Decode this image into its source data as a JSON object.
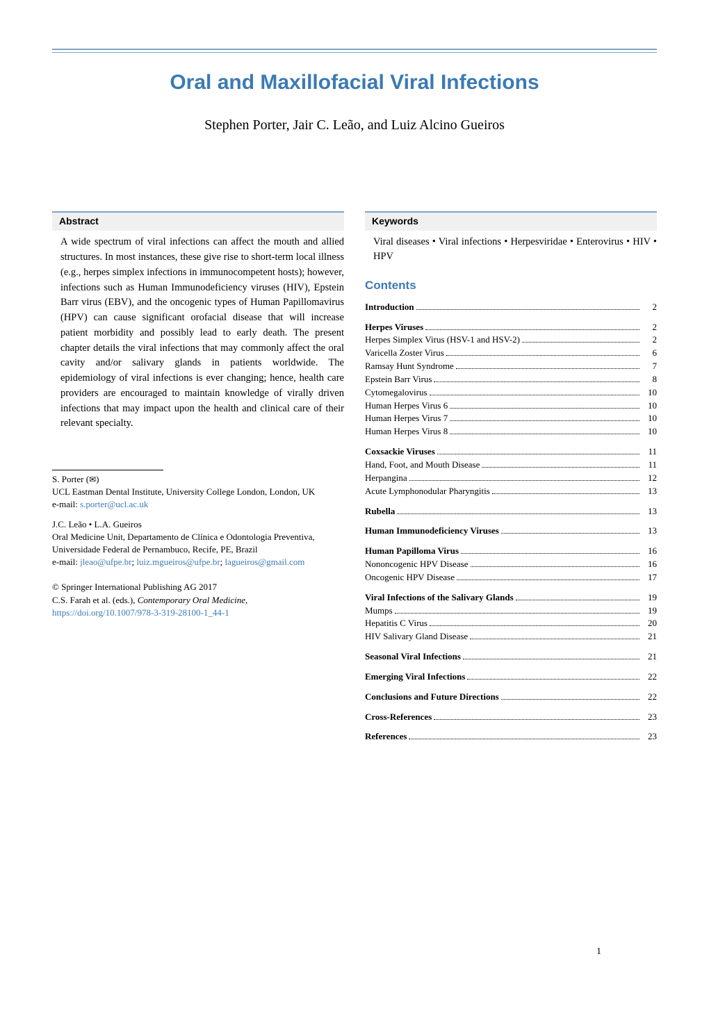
{
  "title": "Oral and Maxillofacial Viral Infections",
  "authors_line": "Stephen Porter, Jair C. Leão, and Luiz Alcino Gueiros",
  "abstract": {
    "heading": "Abstract",
    "body": "A wide spectrum of viral infections can affect the mouth and allied structures. In most instances, these give rise to short-term local illness (e.g., herpes simplex infections in immunocompetent hosts); however, infections such as Human Immunodeficiency viruses (HIV), Epstein Barr virus (EBV), and the oncogenic types of Human Papillomavirus (HPV) can cause significant orofacial disease that will increase patient morbidity and possibly lead to early death. The present chapter details the viral infections that may commonly affect the oral cavity and/or salivary glands in patients worldwide. The epidemiology of viral infections is ever changing; hence, health care providers are encouraged to maintain knowledge of virally driven infections that may impact upon the health and clinical care of their relevant specialty."
  },
  "keywords": {
    "heading": "Keywords",
    "body": "Viral diseases • Viral infections • Herpesviridae • Enterovirus • HIV • HPV"
  },
  "contents_heading": "Contents",
  "toc": [
    {
      "items": [
        {
          "label": "Introduction",
          "bold": true,
          "page": "2"
        }
      ]
    },
    {
      "items": [
        {
          "label": "Herpes Viruses",
          "bold": true,
          "page": "2"
        },
        {
          "label": "Herpes Simplex Virus (HSV-1 and HSV-2)",
          "bold": false,
          "page": "2"
        },
        {
          "label": "Varicella Zoster Virus",
          "bold": false,
          "page": "6"
        },
        {
          "label": "Ramsay Hunt Syndrome",
          "bold": false,
          "page": "7"
        },
        {
          "label": "Epstein Barr Virus",
          "bold": false,
          "page": "8"
        },
        {
          "label": "Cytomegalovirus",
          "bold": false,
          "page": "10"
        },
        {
          "label": "Human Herpes Virus 6",
          "bold": false,
          "page": "10"
        },
        {
          "label": "Human Herpes Virus 7",
          "bold": false,
          "page": "10"
        },
        {
          "label": "Human Herpes Virus 8",
          "bold": false,
          "page": "10"
        }
      ]
    },
    {
      "items": [
        {
          "label": "Coxsackie Viruses",
          "bold": true,
          "page": "11"
        },
        {
          "label": "Hand, Foot, and Mouth Disease",
          "bold": false,
          "page": "11"
        },
        {
          "label": "Herpangina",
          "bold": false,
          "page": "12"
        },
        {
          "label": "Acute Lymphonodular Pharyngitis",
          "bold": false,
          "page": "13"
        }
      ]
    },
    {
      "items": [
        {
          "label": "Rubella",
          "bold": true,
          "page": "13"
        }
      ]
    },
    {
      "items": [
        {
          "label": "Human Immunodeficiency Viruses",
          "bold": true,
          "page": "13"
        }
      ]
    },
    {
      "items": [
        {
          "label": "Human Papilloma Virus",
          "bold": true,
          "page": "16"
        },
        {
          "label": "Nononcogenic HPV Disease",
          "bold": false,
          "page": "16"
        },
        {
          "label": "Oncogenic HPV Disease",
          "bold": false,
          "page": "17"
        }
      ]
    },
    {
      "items": [
        {
          "label": "Viral Infections of the Salivary Glands",
          "bold": true,
          "page": "19"
        },
        {
          "label": "Mumps",
          "bold": false,
          "page": "19"
        },
        {
          "label": "Hepatitis C Virus",
          "bold": false,
          "page": "20"
        },
        {
          "label": "HIV Salivary Gland Disease",
          "bold": false,
          "page": "21"
        }
      ]
    },
    {
      "items": [
        {
          "label": "Seasonal Viral Infections",
          "bold": true,
          "page": "21"
        }
      ]
    },
    {
      "items": [
        {
          "label": "Emerging Viral Infections",
          "bold": true,
          "page": "22"
        }
      ]
    },
    {
      "items": [
        {
          "label": "Conclusions and Future Directions",
          "bold": true,
          "page": "22"
        }
      ]
    },
    {
      "items": [
        {
          "label": "Cross-References",
          "bold": true,
          "page": "23"
        }
      ]
    },
    {
      "items": [
        {
          "label": "References",
          "bold": true,
          "page": "23"
        }
      ]
    }
  ],
  "affiliations": {
    "a1": {
      "name": "S. Porter (",
      "mail_icon": "✉",
      "name_end": ")",
      "org": "UCL Eastman Dental Institute, University College London, London, UK",
      "email_label": "e-mail: ",
      "email": "s.porter@ucl.ac.uk"
    },
    "a2": {
      "name": "J.C. Leão • L.A. Gueiros",
      "org": "Oral Medicine Unit, Departamento de Clínica e Odontologia Preventiva, Universidade Federal de Pernambuco, Recife, PE, Brazil",
      "email_label": "e-mail: ",
      "email1": "jleao@ufpe.br",
      "sep1": "; ",
      "email2": "luiz.mgueiros@ufpe.br",
      "sep2": "; ",
      "email3": "lagueiros@gmail.com"
    }
  },
  "copyright": {
    "line1": "© Springer International Publishing AG 2017",
    "line2_prefix": "C.S. Farah et al. (eds.), ",
    "line2_italic": "Contemporary Oral Medicine",
    "line2_suffix": ",",
    "doi": "https://doi.org/10.1007/978-3-319-28100-1_44-1"
  },
  "page_number": "1"
}
